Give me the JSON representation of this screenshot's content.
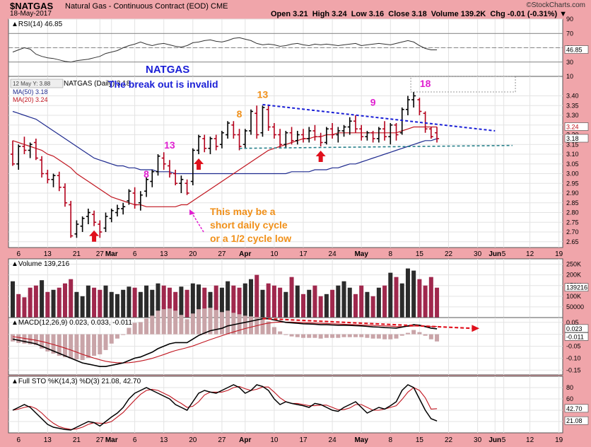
{
  "header": {
    "symbol": "$NATGAS",
    "name": "Natural Gas - Continuous Contract (EOD)  CME",
    "date": "18-May-2017",
    "quote": "Open 3.21  High 3.24  Low 3.16  Close 3.18  Volume 139.2K  Chg -0.01 (-0.31%) ▼",
    "source": "©StockCharts.com"
  },
  "colors": {
    "background": "#f0a5aa",
    "panel": "#ffffff",
    "up_bar": "#000000",
    "down_bar": "#b3001b",
    "ma50": "#1f2b8f",
    "ma20": "#c0151f",
    "vol_up": "#2b2b2b",
    "vol_down": "#a0284d",
    "annotation_blue": "#1a1fd6",
    "annotation_orange": "#f0901a",
    "annotation_magenta": "#e020d0"
  },
  "x_labels": [
    {
      "i": 1,
      "t": "6"
    },
    {
      "i": 6,
      "t": "13"
    },
    {
      "i": 11,
      "t": "21"
    },
    {
      "i": 15,
      "t": "27"
    },
    {
      "i": 17,
      "t": "Mar"
    },
    {
      "i": 21,
      "t": "6"
    },
    {
      "i": 26,
      "t": "13"
    },
    {
      "i": 31,
      "t": "20"
    },
    {
      "i": 36,
      "t": "27"
    },
    {
      "i": 40,
      "t": "Apr"
    },
    {
      "i": 45,
      "t": "10"
    },
    {
      "i": 50,
      "t": "17"
    },
    {
      "i": 55,
      "t": "24"
    },
    {
      "i": 60,
      "t": "May"
    },
    {
      "i": 65,
      "t": "8"
    },
    {
      "i": 70,
      "t": "15"
    },
    {
      "i": 75,
      "t": "22"
    },
    {
      "i": 80,
      "t": "30"
    },
    {
      "i": 83,
      "t": "Jun"
    },
    {
      "i": 84.5,
      "t": "5"
    },
    {
      "i": 89,
      "t": "12"
    },
    {
      "i": 94,
      "t": "19"
    }
  ],
  "chart_data": [
    {
      "type": "line",
      "title": "RSI(14) 46.85",
      "ylim": [
        10,
        90
      ],
      "y_ticks": [
        90,
        70,
        50,
        30,
        10
      ],
      "last_label": "46.85",
      "values": [
        44,
        47,
        50,
        48,
        41,
        38,
        36,
        35,
        33,
        31,
        30,
        32,
        33,
        34,
        36,
        38,
        42,
        44,
        46,
        50,
        53,
        55,
        58,
        55,
        53,
        55,
        56,
        54,
        52,
        51,
        53,
        57,
        58,
        60,
        61,
        59,
        58,
        60,
        63,
        64,
        62,
        60,
        56,
        54,
        55,
        54,
        52,
        53,
        55,
        56,
        54,
        53,
        55,
        54,
        55,
        54,
        53,
        54,
        55,
        56,
        53,
        54,
        55,
        56,
        55,
        54,
        56,
        58,
        60,
        58,
        53,
        49,
        47,
        47
      ]
    },
    {
      "type": "candlestick",
      "title": "NATGAS (Daily) 3.18",
      "ylim": [
        2.62,
        3.5
      ],
      "y_ticks": [
        3.4,
        3.35,
        3.3,
        3.25,
        3.2,
        3.15,
        3.1,
        3.05,
        3.0,
        2.95,
        2.9,
        2.85,
        2.8,
        2.75,
        2.7,
        2.65
      ],
      "last_close_label": "3.18",
      "ma20_label": "3.24",
      "legend": [
        "MA(50) 3.18",
        "MA(20) 3.24"
      ],
      "crosshair_label": "12 May Y: 3.88",
      "ohlc": [
        [
          3.1,
          3.17,
          3.04,
          3.05
        ],
        [
          3.05,
          3.15,
          3.02,
          3.14
        ],
        [
          3.14,
          3.19,
          3.1,
          3.12
        ],
        [
          3.12,
          3.16,
          3.08,
          3.15
        ],
        [
          3.16,
          3.18,
          3.07,
          3.08
        ],
        [
          3.07,
          3.09,
          2.98,
          3.0
        ],
        [
          3.0,
          3.02,
          2.95,
          2.97
        ],
        [
          2.97,
          3.0,
          2.93,
          2.99
        ],
        [
          2.99,
          3.01,
          2.91,
          2.93
        ],
        [
          2.93,
          2.95,
          2.83,
          2.85
        ],
        [
          2.84,
          2.86,
          2.67,
          2.68
        ],
        [
          2.69,
          2.76,
          2.67,
          2.74
        ],
        [
          2.73,
          2.78,
          2.7,
          2.77
        ],
        [
          2.78,
          2.82,
          2.74,
          2.8
        ],
        [
          2.79,
          2.81,
          2.73,
          2.75
        ],
        [
          2.74,
          2.76,
          2.67,
          2.7
        ],
        [
          2.72,
          2.8,
          2.7,
          2.78
        ],
        [
          2.77,
          2.82,
          2.75,
          2.81
        ],
        [
          2.8,
          2.84,
          2.78,
          2.82
        ],
        [
          2.82,
          2.85,
          2.79,
          2.83
        ],
        [
          2.86,
          2.92,
          2.84,
          2.91
        ],
        [
          2.9,
          2.93,
          2.82,
          2.84
        ],
        [
          2.85,
          2.91,
          2.81,
          2.89
        ],
        [
          2.91,
          2.98,
          2.88,
          2.97
        ],
        [
          2.96,
          3.02,
          2.93,
          3.01
        ],
        [
          3.01,
          3.1,
          2.99,
          3.09
        ],
        [
          3.08,
          3.11,
          3.02,
          3.05
        ],
        [
          3.04,
          3.07,
          2.98,
          3.0
        ],
        [
          3.0,
          3.02,
          2.94,
          2.95
        ],
        [
          2.95,
          2.99,
          2.9,
          2.97
        ],
        [
          2.95,
          2.97,
          2.89,
          2.9
        ],
        [
          2.96,
          3.13,
          2.94,
          3.12
        ],
        [
          3.12,
          3.2,
          3.1,
          3.19
        ],
        [
          3.18,
          3.2,
          3.11,
          3.13
        ],
        [
          3.13,
          3.19,
          3.1,
          3.18
        ],
        [
          3.18,
          3.2,
          3.12,
          3.14
        ],
        [
          3.15,
          3.22,
          3.13,
          3.21
        ],
        [
          3.2,
          3.27,
          3.18,
          3.26
        ],
        [
          3.25,
          3.27,
          3.18,
          3.2
        ],
        [
          3.2,
          3.23,
          3.12,
          3.14
        ],
        [
          3.15,
          3.23,
          3.13,
          3.22
        ],
        [
          3.22,
          3.33,
          3.2,
          3.32
        ],
        [
          3.31,
          3.35,
          3.18,
          3.2
        ],
        [
          3.21,
          3.35,
          3.19,
          3.34
        ],
        [
          3.33,
          3.35,
          3.22,
          3.24
        ],
        [
          3.24,
          3.26,
          3.18,
          3.2
        ],
        [
          3.2,
          3.23,
          3.13,
          3.15
        ],
        [
          3.15,
          3.22,
          3.13,
          3.21
        ],
        [
          3.21,
          3.24,
          3.15,
          3.17
        ],
        [
          3.17,
          3.22,
          3.15,
          3.2
        ],
        [
          3.2,
          3.23,
          3.16,
          3.18
        ],
        [
          3.18,
          3.24,
          3.16,
          3.22
        ],
        [
          3.22,
          3.25,
          3.17,
          3.19
        ],
        [
          3.19,
          3.21,
          3.14,
          3.16
        ],
        [
          3.16,
          3.24,
          3.15,
          3.23
        ],
        [
          3.23,
          3.26,
          3.18,
          3.2
        ],
        [
          3.2,
          3.24,
          3.16,
          3.22
        ],
        [
          3.22,
          3.25,
          3.19,
          3.24
        ],
        [
          3.24,
          3.29,
          3.2,
          3.27
        ],
        [
          3.27,
          3.3,
          3.21,
          3.23
        ],
        [
          3.23,
          3.25,
          3.17,
          3.19
        ],
        [
          3.19,
          3.22,
          3.17,
          3.21
        ],
        [
          3.21,
          3.22,
          3.16,
          3.18
        ],
        [
          3.18,
          3.24,
          3.16,
          3.23
        ],
        [
          3.23,
          3.27,
          3.17,
          3.19
        ],
        [
          3.19,
          3.26,
          3.15,
          3.25
        ],
        [
          3.25,
          3.26,
          3.17,
          3.2
        ],
        [
          3.21,
          3.34,
          3.2,
          3.33
        ],
        [
          3.33,
          3.4,
          3.3,
          3.38
        ],
        [
          3.38,
          3.42,
          3.34,
          3.4
        ],
        [
          3.38,
          3.39,
          3.3,
          3.32
        ],
        [
          3.31,
          3.32,
          3.21,
          3.23
        ],
        [
          3.23,
          3.24,
          3.18,
          3.19
        ],
        [
          3.21,
          3.24,
          3.16,
          3.18
        ]
      ],
      "ma20": [
        3.17,
        3.16,
        3.15,
        3.14,
        3.13,
        3.12,
        3.1,
        3.09,
        3.07,
        3.05,
        3.03,
        3.0,
        2.98,
        2.96,
        2.94,
        2.92,
        2.9,
        2.88,
        2.87,
        2.86,
        2.85,
        2.84,
        2.84,
        2.83,
        2.83,
        2.83,
        2.83,
        2.83,
        2.83,
        2.84,
        2.84,
        2.86,
        2.88,
        2.9,
        2.92,
        2.94,
        2.96,
        2.98,
        3.0,
        3.02,
        3.04,
        3.06,
        3.08,
        3.1,
        3.12,
        3.13,
        3.14,
        3.15,
        3.16,
        3.17,
        3.18,
        3.18,
        3.19,
        3.19,
        3.2,
        3.2,
        3.21,
        3.21,
        3.21,
        3.21,
        3.21,
        3.21,
        3.21,
        3.21,
        3.21,
        3.21,
        3.21,
        3.22,
        3.23,
        3.24,
        3.24,
        3.24,
        3.24,
        3.24
      ],
      "ma50": [
        3.32,
        3.31,
        3.3,
        3.29,
        3.28,
        3.26,
        3.24,
        3.22,
        3.2,
        3.18,
        3.16,
        3.14,
        3.12,
        3.1,
        3.08,
        3.07,
        3.06,
        3.05,
        3.04,
        3.04,
        3.03,
        3.03,
        3.02,
        3.02,
        3.02,
        3.01,
        3.01,
        3.01,
        3.0,
        3.0,
        3.0,
        3.0,
        3.0,
        3.0,
        3.0,
        3.0,
        3.0,
        3.0,
        3.0,
        3.0,
        3.0,
        3.0,
        3.0,
        3.0,
        3.0,
        3.0,
        3.0,
        3.0,
        3.01,
        3.01,
        3.01,
        3.01,
        3.02,
        3.02,
        3.02,
        3.03,
        3.03,
        3.04,
        3.05,
        3.05,
        3.06,
        3.07,
        3.08,
        3.09,
        3.1,
        3.11,
        3.12,
        3.13,
        3.14,
        3.15,
        3.16,
        3.17,
        3.17,
        3.18
      ],
      "annotations": {
        "title": "NATGAS",
        "subtitle": "The break out is invalid",
        "cycle_note": [
          "This may be a",
          "short daily cycle",
          "or a 1/2 cycle low"
        ],
        "counts": [
          {
            "i": 23,
            "p": 2.98,
            "t": "8",
            "c": "magenta"
          },
          {
            "i": 27,
            "p": 3.13,
            "t": "13",
            "c": "magenta"
          },
          {
            "i": 39,
            "p": 3.29,
            "t": "8",
            "c": "orange"
          },
          {
            "i": 43,
            "p": 3.39,
            "t": "13",
            "c": "orange"
          },
          {
            "i": 62,
            "p": 3.35,
            "t": "9",
            "c": "magenta"
          },
          {
            "i": 71,
            "p": 3.445,
            "t": "18",
            "c": "magenta"
          }
        ],
        "arrows": [
          14,
          32,
          53
        ]
      }
    },
    {
      "type": "bar",
      "title": "Volume 139,216",
      "ylim": [
        0,
        275000
      ],
      "y_tick_labels": [
        "250K",
        "200K",
        "150K",
        "100K",
        "50000"
      ],
      "y_ticks": [
        250000,
        200000,
        150000,
        100000,
        50000
      ],
      "last_label": "139216",
      "values": [
        170,
        110,
        95,
        140,
        150,
        175,
        120,
        130,
        140,
        160,
        180,
        120,
        100,
        150,
        140,
        130,
        150,
        120,
        110,
        130,
        145,
        140,
        120,
        150,
        130,
        160,
        150,
        140,
        120,
        145,
        130,
        160,
        155,
        140,
        120,
        150,
        140,
        170,
        150,
        140,
        160,
        180,
        200,
        130,
        160,
        150,
        140,
        120,
        190,
        150,
        110,
        130,
        150,
        100,
        110,
        130,
        150,
        170,
        140,
        110,
        150,
        120,
        100,
        140,
        150,
        210,
        190,
        160,
        230,
        220,
        180,
        150,
        190,
        140
      ],
      "up": [
        1,
        0,
        0,
        0,
        0,
        1,
        0,
        1,
        0,
        0,
        0,
        1,
        1,
        1,
        0,
        0,
        1,
        1,
        1,
        1,
        1,
        0,
        1,
        1,
        1,
        1,
        0,
        0,
        0,
        1,
        0,
        1,
        1,
        0,
        1,
        0,
        1,
        1,
        0,
        0,
        1,
        1,
        0,
        1,
        0,
        0,
        0,
        1,
        0,
        1,
        0,
        1,
        0,
        0,
        1,
        0,
        1,
        1,
        1,
        0,
        0,
        1,
        0,
        1,
        0,
        1,
        0,
        1,
        1,
        1,
        0,
        0,
        0,
        0
      ]
    },
    {
      "type": "line",
      "title": "MACD(12,26,9) 0.023, 0.033, -0.011",
      "ylim": [
        -0.17,
        0.07
      ],
      "y_tick_labels": [
        "0.05",
        "0.00",
        "-0.05",
        "-0.10",
        "-0.15"
      ],
      "y_ticks": [
        0.05,
        0.0,
        -0.05,
        -0.1,
        -0.15
      ],
      "last_labels": [
        "0.023",
        "-0.011"
      ],
      "macd": [
        -0.02,
        -0.025,
        -0.03,
        -0.035,
        -0.04,
        -0.05,
        -0.06,
        -0.07,
        -0.08,
        -0.09,
        -0.1,
        -0.11,
        -0.12,
        -0.125,
        -0.13,
        -0.135,
        -0.135,
        -0.13,
        -0.125,
        -0.12,
        -0.11,
        -0.1,
        -0.095,
        -0.085,
        -0.075,
        -0.06,
        -0.05,
        -0.04,
        -0.035,
        -0.035,
        -0.035,
        -0.02,
        -0.005,
        0.005,
        0.015,
        0.02,
        0.025,
        0.035,
        0.04,
        0.045,
        0.05,
        0.055,
        0.06,
        0.065,
        0.065,
        0.06,
        0.055,
        0.05,
        0.048,
        0.046,
        0.044,
        0.043,
        0.042,
        0.04,
        0.04,
        0.039,
        0.038,
        0.038,
        0.037,
        0.036,
        0.035,
        0.033,
        0.031,
        0.03,
        0.028,
        0.027,
        0.026,
        0.03,
        0.035,
        0.04,
        0.038,
        0.032,
        0.026,
        0.023
      ],
      "signal": [
        -0.01,
        -0.013,
        -0.017,
        -0.021,
        -0.025,
        -0.03,
        -0.036,
        -0.043,
        -0.05,
        -0.058,
        -0.066,
        -0.075,
        -0.084,
        -0.092,
        -0.1,
        -0.107,
        -0.113,
        -0.117,
        -0.119,
        -0.12,
        -0.119,
        -0.116,
        -0.112,
        -0.107,
        -0.101,
        -0.093,
        -0.085,
        -0.076,
        -0.068,
        -0.062,
        -0.056,
        -0.049,
        -0.04,
        -0.031,
        -0.022,
        -0.014,
        -0.006,
        0.002,
        0.01,
        0.017,
        0.024,
        0.03,
        0.036,
        0.042,
        0.047,
        0.05,
        0.051,
        0.051,
        0.051,
        0.05,
        0.049,
        0.048,
        0.047,
        0.046,
        0.045,
        0.044,
        0.043,
        0.042,
        0.041,
        0.04,
        0.039,
        0.038,
        0.037,
        0.036,
        0.035,
        0.034,
        0.032,
        0.032,
        0.033,
        0.034,
        0.035,
        0.034,
        0.033,
        0.033
      ]
    },
    {
      "type": "line",
      "title": "Full STO %K(14,3) %D(3) 21.08, 42.70",
      "ylim": [
        0,
        100
      ],
      "y_ticks": [
        80,
        60,
        40,
        20
      ],
      "last_labels": [
        "42.70",
        "21.08"
      ],
      "k": [
        40,
        45,
        50,
        45,
        35,
        25,
        15,
        10,
        8,
        6,
        5,
        10,
        15,
        20,
        18,
        12,
        20,
        28,
        35,
        45,
        60,
        70,
        75,
        80,
        75,
        70,
        65,
        60,
        50,
        45,
        40,
        55,
        70,
        75,
        72,
        70,
        75,
        80,
        85,
        80,
        70,
        75,
        85,
        82,
        75,
        60,
        50,
        55,
        52,
        50,
        48,
        45,
        52,
        50,
        45,
        40,
        38,
        45,
        50,
        55,
        45,
        35,
        40,
        45,
        42,
        48,
        55,
        75,
        85,
        80,
        60,
        40,
        25,
        21
      ],
      "d": [
        40,
        42,
        45,
        47,
        43,
        35,
        25,
        17,
        11,
        8,
        6,
        7,
        10,
        15,
        18,
        17,
        17,
        20,
        28,
        36,
        47,
        58,
        68,
        75,
        77,
        75,
        70,
        65,
        58,
        52,
        45,
        47,
        55,
        67,
        72,
        72,
        72,
        75,
        80,
        82,
        78,
        75,
        77,
        81,
        81,
        72,
        62,
        55,
        52,
        52,
        50,
        48,
        48,
        49,
        49,
        45,
        41,
        41,
        44,
        50,
        50,
        45,
        40,
        40,
        42,
        45,
        48,
        59,
        72,
        80,
        75,
        62,
        42,
        42.7
      ]
    }
  ]
}
